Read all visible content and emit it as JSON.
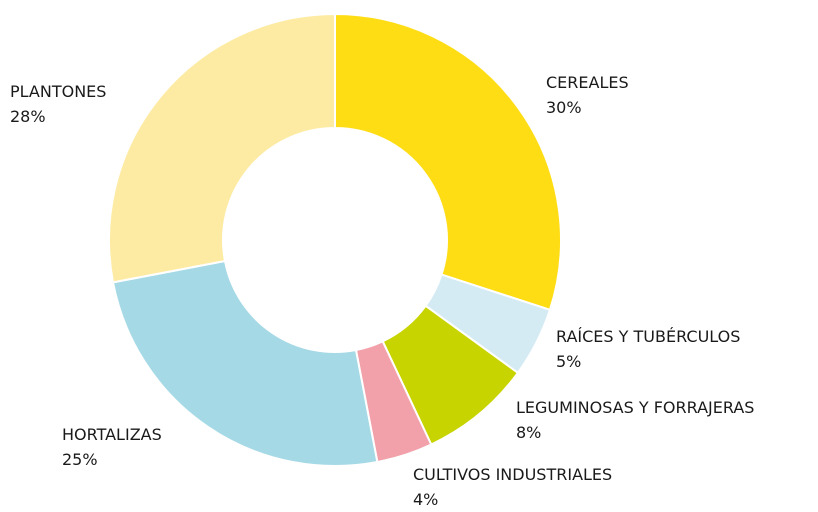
{
  "chart_data": {
    "type": "donut",
    "categories": [
      "CEREALES",
      "RAÍCES Y TUBÉRCULOS",
      "LEGUMINOSAS Y FORRAJERAS",
      "CULTIVOS INDUSTRIALES",
      "HORTALIZAS",
      "PLANTONES"
    ],
    "values": [
      30,
      5,
      8,
      4,
      25,
      28
    ],
    "value_labels": [
      "30%",
      "5%",
      "8%",
      "4%",
      "25%",
      "28%"
    ],
    "colors": [
      "#ffdd15",
      "#d4ebf4",
      "#c8d400",
      "#f2a0aa",
      "#a6d9e6",
      "#fdeba4"
    ]
  }
}
